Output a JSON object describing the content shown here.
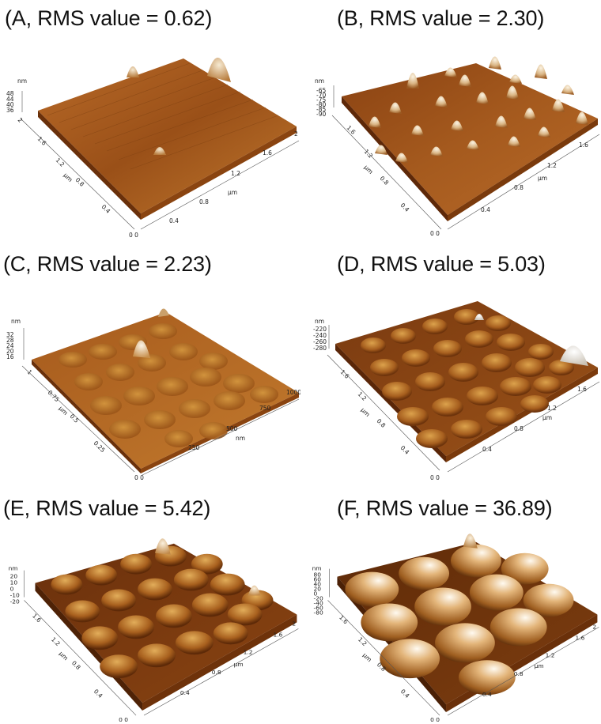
{
  "panels": [
    {
      "id": "A",
      "caption": "(A, RMS value = 0.62)",
      "z_unit": "nm",
      "z_ticks": [
        "48",
        "44",
        "40",
        "36"
      ],
      "y_unit": "µm",
      "y_ticks": [
        "0.4",
        "0.8",
        "1.2",
        "1.6",
        "2"
      ],
      "x_unit": "µm",
      "x_ticks": [
        "0.4",
        "0.8",
        "1.2",
        "1.6",
        "2"
      ],
      "origin_label": "0  0",
      "surface": "flat, striated, few isolated peaks"
    },
    {
      "id": "B",
      "caption": "(B, RMS value = 2.30)",
      "z_unit": "nm",
      "z_ticks": [
        "-65",
        "-70",
        "-75",
        "-80",
        "-85",
        "-90"
      ],
      "y_unit": "µm",
      "y_ticks": [
        "0.4",
        "0.8",
        "1.2",
        "1.6"
      ],
      "x_unit": "µm",
      "x_ticks": [
        "0.4",
        "0.8",
        "1.2",
        "1.6"
      ],
      "origin_label": "0  0",
      "surface": "many sharp spikes"
    },
    {
      "id": "C",
      "caption": "(C, RMS value = 2.23)",
      "z_unit": "nm",
      "z_ticks": [
        "32",
        "28",
        "24",
        "20",
        "16"
      ],
      "y_unit": "µm",
      "y_ticks": [
        "0.25",
        "0.5",
        "0.75",
        "1"
      ],
      "x_unit": "nm",
      "x_ticks": [
        "250",
        "500",
        "750",
        "1000"
      ],
      "origin_label": "0  0",
      "surface": "low bumps with one peak"
    },
    {
      "id": "D",
      "caption": "(D, RMS value = 5.03)",
      "z_unit": "nm",
      "z_ticks": [
        "-220",
        "-240",
        "-260",
        "-280"
      ],
      "y_unit": "µm",
      "y_ticks": [
        "0.4",
        "0.8",
        "1.2",
        "1.6"
      ],
      "x_unit": "µm",
      "x_ticks": [
        "0.4",
        "0.8",
        "1.2",
        "1.6"
      ],
      "origin_label": "0  0",
      "surface": "regular domed array"
    },
    {
      "id": "E",
      "caption": "(E, RMS value = 5.42)",
      "z_unit": "nm",
      "z_ticks": [
        "20",
        "10",
        "0",
        "-10",
        "-20"
      ],
      "y_unit": "µm",
      "y_ticks": [
        "0.4",
        "0.8",
        "1.2",
        "1.6"
      ],
      "x_unit": "µm",
      "x_ticks": [
        "0.4",
        "0.8",
        "1.2",
        "1.6",
        "2"
      ],
      "origin_label": "0  0",
      "surface": "larger domes"
    },
    {
      "id": "F",
      "caption": "(F, RMS value = 36.89)",
      "z_unit": "nm",
      "z_ticks": [
        "80",
        "60",
        "40",
        "20",
        "0",
        "-20",
        "-40",
        "-60",
        "-80"
      ],
      "y_unit": "µm",
      "y_ticks": [
        "0.4",
        "0.8",
        "1.2",
        "1.6"
      ],
      "x_unit": "µm",
      "x_ticks": [
        "0.4",
        "0.8",
        "1.2",
        "1.6",
        "2"
      ],
      "origin_label": "0  0",
      "surface": "large glossy hemispheres"
    }
  ],
  "colors": {
    "surface_dark": "#5a2a08",
    "surface_mid": "#a8581a",
    "surface_light": "#d6963f",
    "highlight": "#f7ead0",
    "side_face": "#7a3a0c"
  }
}
